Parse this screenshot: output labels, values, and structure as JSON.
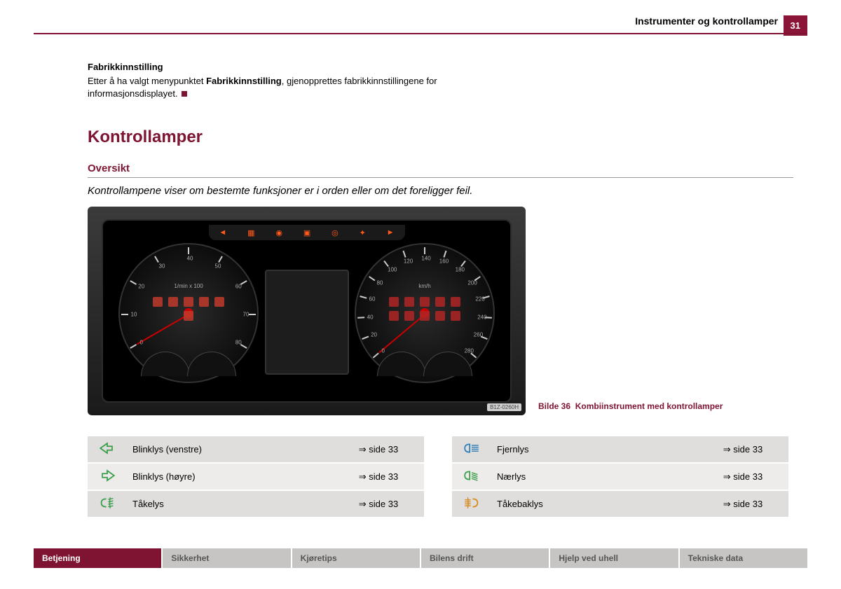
{
  "page_number": "31",
  "header_title": "Instrumenter og kontrollamper",
  "section_fab_title": "Fabrikkinnstilling",
  "section_fab_text_1": "Etter å ha valgt menypunktet ",
  "section_fab_bold": "Fabrikkinnstilling",
  "section_fab_text_2": ", gjenopprettes fabrikkinnstillingene for informasjonsdisplayet.",
  "h1": "Kontrollamper",
  "h2": "Oversikt",
  "intro": "Kontrollampene viser om bestemte funksjoner er i orden eller om det foreligger feil.",
  "figure_tag": "B1Z-0260H",
  "caption_prefix": "Bilde 36",
  "caption_text": "Kombiinstrument med kontrollamper",
  "gauge_left": {
    "unit": "1/min x 100",
    "labels": [
      "0",
      "10",
      "20",
      "30",
      "40",
      "50",
      "60",
      "70",
      "80"
    ]
  },
  "gauge_right": {
    "unit": "km/h",
    "labels": [
      "0",
      "20",
      "40",
      "60",
      "80",
      "100",
      "120",
      "140",
      "160",
      "180",
      "200",
      "220",
      "240",
      "260",
      "280"
    ]
  },
  "colors": {
    "accent": "#7e1432",
    "icon_green": "#3a9d4a",
    "icon_blue": "#2d7fb8",
    "icon_orange": "#d68a1f"
  },
  "table_left": [
    {
      "icon": "arrow-left",
      "color": "#3a9d4a",
      "label": "Blinklys (venstre)",
      "ref": "⇒ side 33"
    },
    {
      "icon": "arrow-right",
      "color": "#3a9d4a",
      "label": "Blinklys (høyre)",
      "ref": "⇒ side 33"
    },
    {
      "icon": "fog-front",
      "color": "#3a9d4a",
      "label": "Tåkelys",
      "ref": "⇒ side 33"
    }
  ],
  "table_right": [
    {
      "icon": "high-beam",
      "color": "#2d7fb8",
      "label": "Fjernlys",
      "ref": "⇒ side 33"
    },
    {
      "icon": "low-beam",
      "color": "#3a9d4a",
      "label": "Nærlys",
      "ref": "⇒ side 33"
    },
    {
      "icon": "fog-rear",
      "color": "#d68a1f",
      "label": "Tåkebaklys",
      "ref": "⇒ side 33"
    }
  ],
  "footer": [
    {
      "label": "Betjening",
      "active": true
    },
    {
      "label": "Sikkerhet",
      "active": false
    },
    {
      "label": "Kjøretips",
      "active": false
    },
    {
      "label": "Bilens drift",
      "active": false
    },
    {
      "label": "Hjelp ved uhell",
      "active": false
    },
    {
      "label": "Tekniske data",
      "active": false
    }
  ]
}
